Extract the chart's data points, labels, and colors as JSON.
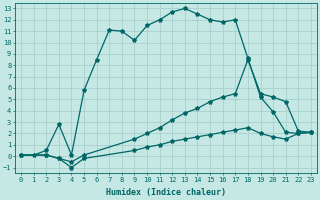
{
  "xlabel": "Humidex (Indice chaleur)",
  "bg_color": "#c5e8e5",
  "grid_color": "#a8d0cc",
  "line_color": "#006666",
  "line_width": 0.9,
  "marker": "*",
  "marker_size": 3,
  "xlim": [
    -0.5,
    23.5
  ],
  "ylim": [
    -1.5,
    13.5
  ],
  "xticks": [
    0,
    1,
    2,
    3,
    4,
    5,
    6,
    7,
    8,
    9,
    10,
    11,
    12,
    13,
    14,
    15,
    16,
    17,
    18,
    19,
    20,
    21,
    22,
    23
  ],
  "yticks": [
    -1,
    0,
    1,
    2,
    3,
    4,
    5,
    6,
    7,
    8,
    9,
    10,
    11,
    12,
    13
  ],
  "series1_x": [
    0,
    1,
    2,
    3,
    4,
    5,
    6,
    7,
    8,
    9,
    10,
    11,
    12,
    13,
    14,
    15,
    16,
    17,
    18,
    19,
    20,
    21,
    22,
    23
  ],
  "series1_y": [
    0.1,
    0.1,
    0.5,
    2.8,
    0.1,
    5.8,
    8.5,
    11.1,
    11.0,
    10.2,
    11.5,
    12.0,
    12.7,
    13.0,
    12.5,
    12.0,
    11.8,
    12.0,
    8.6,
    5.2,
    3.9,
    2.1,
    2.0,
    2.1
  ],
  "series2_x": [
    0,
    2,
    3,
    4,
    5,
    9,
    10,
    11,
    12,
    13,
    14,
    15,
    16,
    17,
    18,
    19,
    20,
    21,
    22,
    23
  ],
  "series2_y": [
    0.1,
    0.1,
    -0.2,
    -0.5,
    0.1,
    1.5,
    2.0,
    2.5,
    3.2,
    3.8,
    4.2,
    4.8,
    5.2,
    5.5,
    8.5,
    5.5,
    5.2,
    4.8,
    2.2,
    2.1
  ],
  "series3_x": [
    0,
    2,
    3,
    4,
    5,
    9,
    10,
    11,
    12,
    13,
    14,
    15,
    16,
    17,
    18,
    19,
    20,
    21,
    22,
    23
  ],
  "series3_y": [
    0.1,
    0.1,
    -0.2,
    -1.0,
    -0.2,
    0.5,
    0.8,
    1.0,
    1.3,
    1.5,
    1.7,
    1.9,
    2.1,
    2.3,
    2.5,
    2.0,
    1.7,
    1.5,
    2.0,
    2.1
  ]
}
